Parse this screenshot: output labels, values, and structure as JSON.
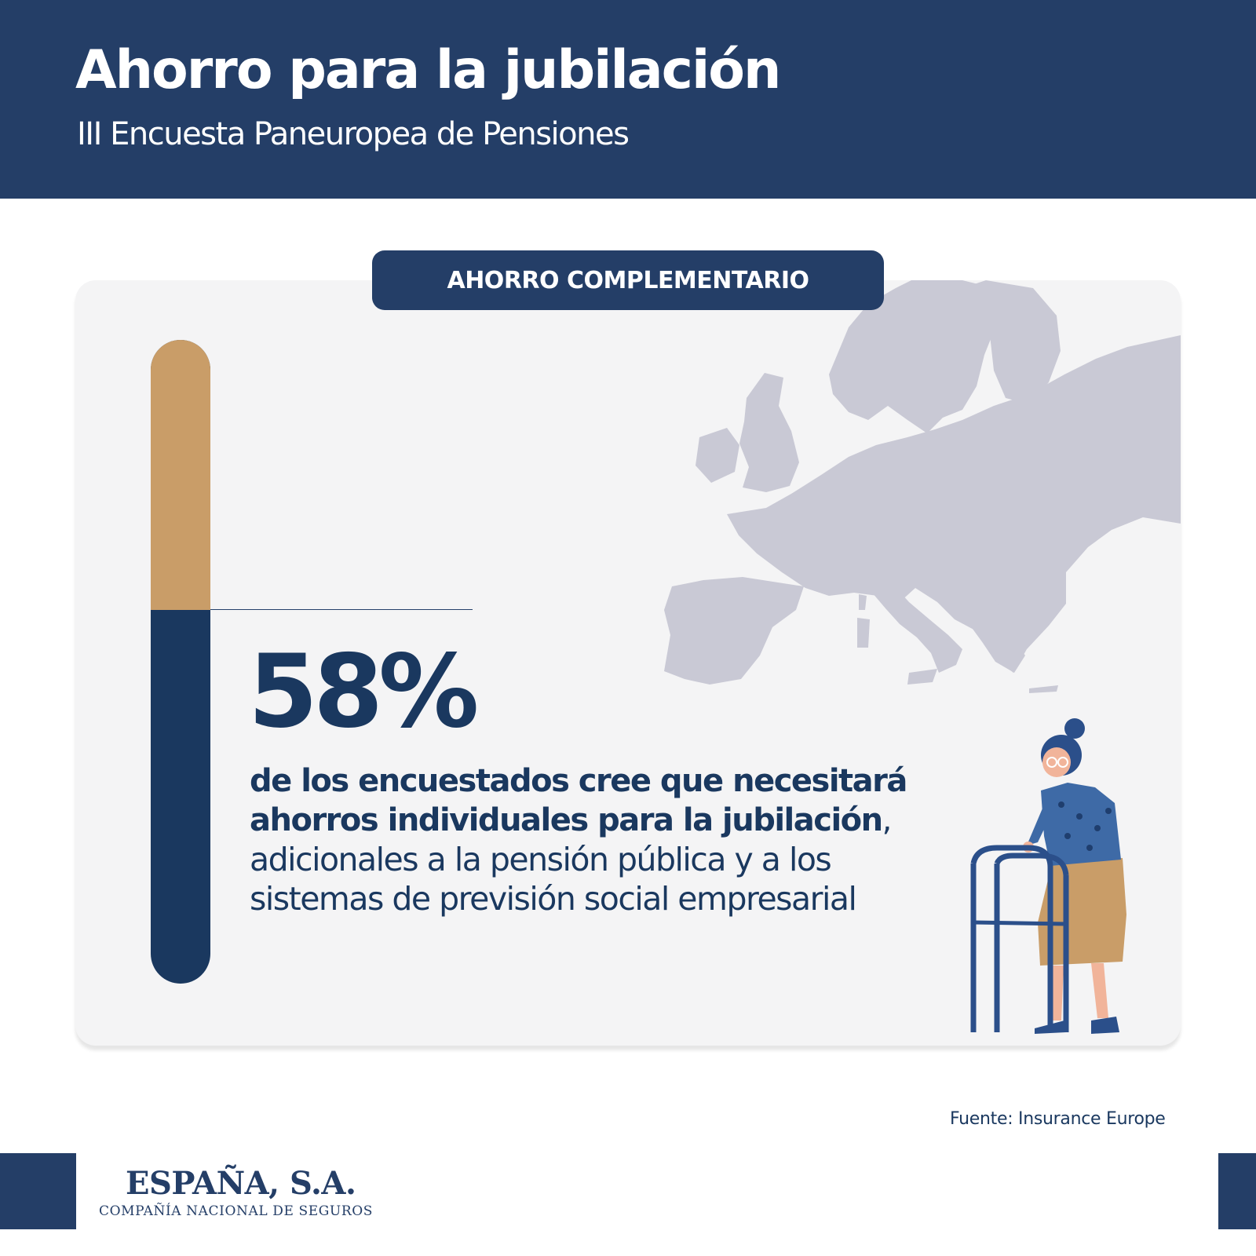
{
  "header": {
    "title": "Ahorro para la jubilación",
    "subtitle": "III Encuesta Paneuropea de Pensiones"
  },
  "card": {
    "label": "AHORRO COMPLEMENTARIO",
    "stat": {
      "value": "58%",
      "fraction": 0.58
    },
    "description": {
      "bold_line_1": "de los encuestados cree que necesitará",
      "bold_line_2": "ahorros individuales para la jubilación",
      "bold_line_2_comma": ",",
      "line_3": "adicionales a la pensión pública y a los",
      "line_4": "sistemas de previsión social empresarial"
    }
  },
  "source": "Fuente: Insurance Europe",
  "logo": {
    "name": "ESPAÑA, S.A.",
    "tagline": "COMPAÑÍA NACIONAL DE SEGUROS"
  },
  "colors": {
    "navy": "#243e67",
    "dark_navy": "#1a385f",
    "gold": "#c99d68",
    "map_grey": "#c9c9d5",
    "card_bg": "#f4f4f5"
  }
}
